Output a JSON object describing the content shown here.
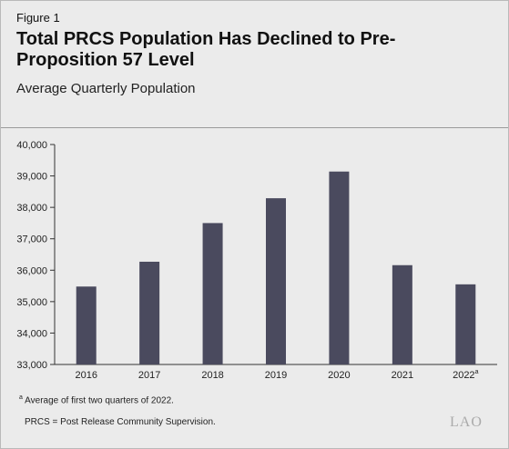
{
  "figure": {
    "label": "Figure 1",
    "title": "Total PRCS Population Has Declined to Pre-Proposition 57 Level",
    "subtitle": "Average Quarterly Population"
  },
  "chart_data": {
    "type": "bar",
    "categories": [
      "2016",
      "2017",
      "2018",
      "2019",
      "2020",
      "2021",
      "2022"
    ],
    "category_superscripts": [
      "",
      "",
      "",
      "",
      "",
      "",
      "a"
    ],
    "values": [
      35480,
      36270,
      37500,
      38290,
      39140,
      36160,
      35550
    ],
    "ylim": [
      33000,
      40000
    ],
    "yticks": [
      33000,
      34000,
      35000,
      36000,
      37000,
      38000,
      39000,
      40000
    ],
    "ytick_labels": [
      "33,000",
      "34,000",
      "35,000",
      "36,000",
      "37,000",
      "38,000",
      "39,000",
      "40,000"
    ],
    "bar_color": "#4a4a5e",
    "grid": false,
    "xlabel": "",
    "ylabel": ""
  },
  "footnote": {
    "marker": "a",
    "text": "Average of first two quarters of 2022."
  },
  "note": "PRCS = Post Release Community Supervision.",
  "logo": "LAO"
}
